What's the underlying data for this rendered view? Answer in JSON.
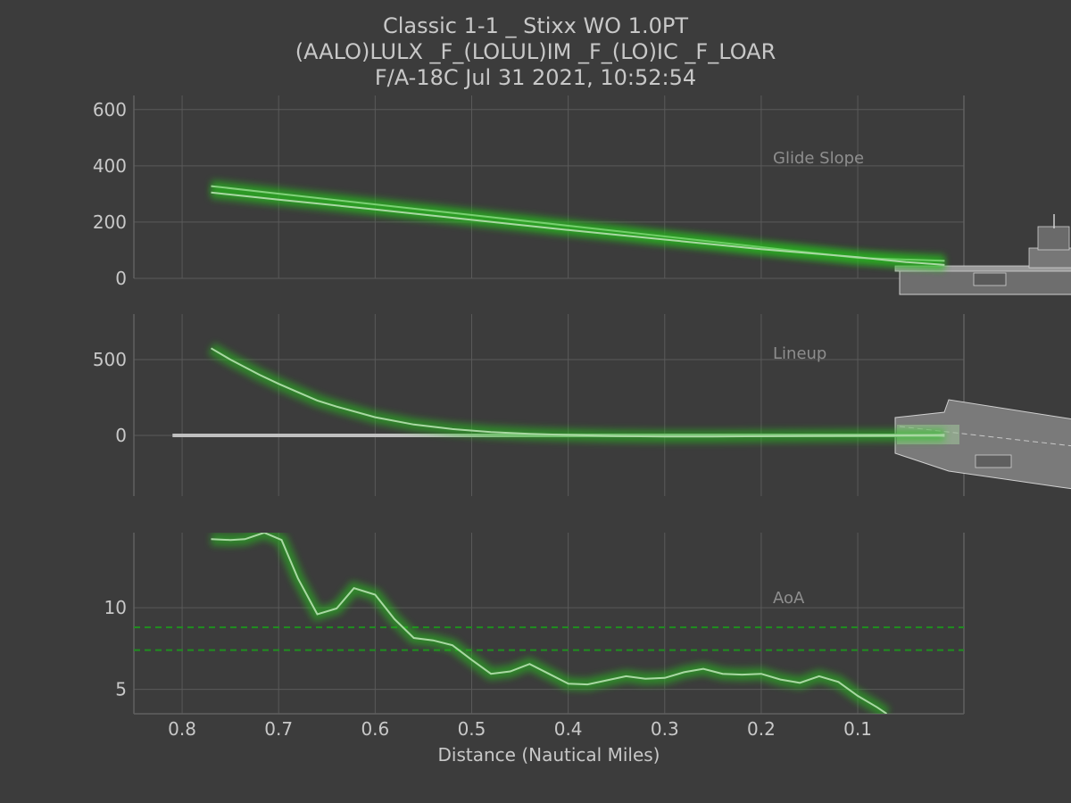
{
  "title_lines": [
    "Classic 1-1 _ Stixx WO 1.0PT",
    "(AALO)LULX _F_(LOLUL)IM  _F_(LO)IC _F_LOAR",
    "F/A-18C Jul 31 2021, 10:52:54"
  ],
  "colors": {
    "background": "#3c3c3c",
    "grid": "#5a5a5a",
    "text": "#c8c8c8",
    "trace": "#a9d8a3",
    "glow": "#27c21b",
    "reference": "#c0c0c0",
    "aoa_band": "#1f8f1f",
    "ship": "#8a8a8a"
  },
  "chart_data": {
    "type": "line",
    "xlabel": "Distance (Nautical Miles)",
    "xlim": [
      0.85,
      -0.01
    ],
    "xticks": [
      0.8,
      0.7,
      0.6,
      0.5,
      0.4,
      0.3,
      0.2,
      0.1
    ],
    "xtick_labels": [
      "0.8",
      "0.7",
      "0.6",
      "0.5",
      "0.4",
      "0.3",
      "0.2",
      "0.1"
    ],
    "panels": [
      {
        "name": "Glide Slope",
        "ylim": [
          0,
          650
        ],
        "yticks": [
          0,
          200,
          400,
          600
        ],
        "ytick_labels": [
          "0",
          "200",
          "400",
          "600"
        ],
        "series": [
          {
            "role": "reference",
            "x": [
              0.77,
              0.7,
              0.6,
              0.5,
              0.4,
              0.3,
              0.2,
              0.1,
              0.01
            ],
            "y": [
              328,
              301,
              263,
              225,
              187,
              149,
              111,
              73,
              62
            ]
          },
          {
            "role": "trace",
            "x": [
              0.77,
              0.7,
              0.6,
              0.5,
              0.4,
              0.3,
              0.2,
              0.1,
              0.05,
              0.01
            ],
            "y": [
              305,
              280,
              245,
              208,
              172,
              138,
              104,
              75,
              58,
              48
            ]
          }
        ]
      },
      {
        "name": "Lineup",
        "ylim": [
          -400,
          800
        ],
        "yticks": [
          0,
          500
        ],
        "ytick_labels": [
          "0",
          "500"
        ],
        "series": [
          {
            "role": "reference",
            "x": [
              0.81,
              0.01
            ],
            "y": [
              0,
              0
            ]
          },
          {
            "role": "trace",
            "x": [
              0.77,
              0.75,
              0.72,
              0.7,
              0.68,
              0.66,
              0.64,
              0.6,
              0.56,
              0.52,
              0.48,
              0.44,
              0.4,
              0.35,
              0.3,
              0.25,
              0.2,
              0.15,
              0.1,
              0.05,
              0.01
            ],
            "y": [
              575,
              500,
              400,
              340,
              285,
              230,
              190,
              120,
              72,
              42,
              22,
              10,
              3,
              -4,
              -7,
              -7,
              -5,
              -3,
              -1,
              0,
              1
            ]
          }
        ]
      },
      {
        "name": "AoA",
        "ylim": [
          3.5,
          14.6
        ],
        "yticks": [
          5,
          10
        ],
        "ytick_labels": [
          "5",
          "10"
        ],
        "bands": [
          7.4,
          8.8
        ],
        "series": [
          {
            "role": "trace",
            "x": [
              0.77,
              0.75,
              0.735,
              0.715,
              0.697,
              0.68,
              0.66,
              0.64,
              0.622,
              0.6,
              0.58,
              0.56,
              0.54,
              0.52,
              0.5,
              0.48,
              0.46,
              0.44,
              0.42,
              0.4,
              0.38,
              0.36,
              0.34,
              0.32,
              0.3,
              0.28,
              0.26,
              0.24,
              0.22,
              0.2,
              0.18,
              0.16,
              0.14,
              0.12,
              0.1,
              0.08,
              0.07
            ],
            "y": [
              14.2,
              14.15,
              14.2,
              14.6,
              14.15,
              11.8,
              9.6,
              9.95,
              11.2,
              10.8,
              9.3,
              8.15,
              8.0,
              7.7,
              6.8,
              5.95,
              6.1,
              6.55,
              5.95,
              5.35,
              5.3,
              5.55,
              5.8,
              5.65,
              5.7,
              6.05,
              6.25,
              5.95,
              5.9,
              5.95,
              5.6,
              5.4,
              5.8,
              5.45,
              4.6,
              3.9,
              3.5
            ]
          }
        ]
      }
    ]
  }
}
